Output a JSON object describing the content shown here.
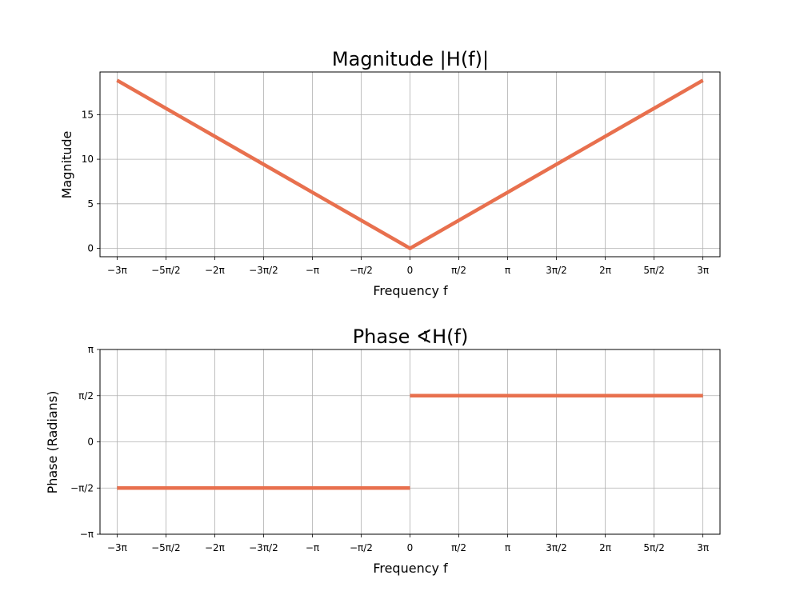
{
  "chart_data": [
    {
      "type": "line",
      "title": "Magnitude |H(f)|",
      "xlabel": "Frequency f",
      "ylabel": "Magnitude",
      "xlim": [
        -9.975,
        9.975
      ],
      "ylim": [
        -0.94,
        19.79
      ],
      "xticks": [
        -9.4248,
        -7.854,
        -6.2832,
        -4.7124,
        -3.1416,
        -1.5708,
        0,
        1.5708,
        3.1416,
        4.7124,
        6.2832,
        7.854,
        9.4248
      ],
      "xtick_labels": [
        "−3π",
        "−5π/2",
        "−2π",
        "−3π/2",
        "−π",
        "−π/2",
        "0",
        "π/2",
        "π",
        "3π/2",
        "2π",
        "5π/2",
        "3π"
      ],
      "yticks": [
        0,
        5,
        10,
        15
      ],
      "ytick_labels": [
        "0",
        "5",
        "10",
        "15"
      ],
      "grid": true,
      "series": [
        {
          "segments": [
            {
              "x": [
                -9.4248,
                0,
                9.4248
              ],
              "y": [
                18.85,
                0,
                18.85
              ]
            }
          ],
          "color": "#E8704E"
        }
      ]
    },
    {
      "type": "line",
      "title": "Phase ∢H(f)",
      "xlabel": "Frequency f",
      "ylabel": "Phase (Radians)",
      "xlim": [
        -9.975,
        9.975
      ],
      "ylim": [
        -3.1416,
        3.1416
      ],
      "xticks": [
        -9.4248,
        -7.854,
        -6.2832,
        -4.7124,
        -3.1416,
        -1.5708,
        0,
        1.5708,
        3.1416,
        4.7124,
        6.2832,
        7.854,
        9.4248
      ],
      "xtick_labels": [
        "−3π",
        "−5π/2",
        "−2π",
        "−3π/2",
        "−π",
        "−π/2",
        "0",
        "π/2",
        "π",
        "3π/2",
        "2π",
        "5π/2",
        "3π"
      ],
      "yticks": [
        -3.1416,
        -1.5708,
        0,
        1.5708,
        3.1416
      ],
      "ytick_labels": [
        "−π",
        "−π/2",
        "0",
        "π/2",
        "π"
      ],
      "grid": true,
      "series": [
        {
          "segments": [
            {
              "x": [
                -9.4248,
                0
              ],
              "y": [
                -1.5708,
                -1.5708
              ]
            },
            {
              "x": [
                0,
                9.4248
              ],
              "y": [
                1.5708,
                1.5708
              ]
            }
          ],
          "color": "#E8704E"
        }
      ]
    }
  ]
}
